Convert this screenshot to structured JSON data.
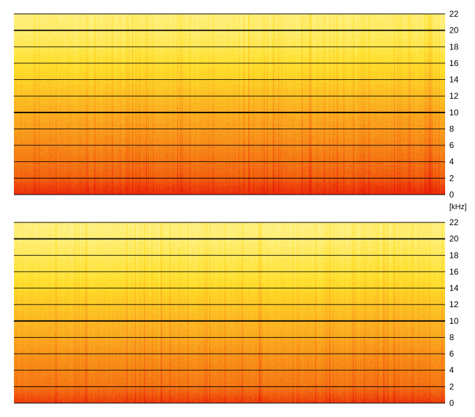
{
  "chart_data": [
    {
      "type": "heatmap",
      "title": "",
      "xlabel": "",
      "ylabel": "",
      "y_unit": "[kHz]",
      "ylim": [
        0,
        22
      ],
      "yticks": [
        "0",
        "2",
        "4",
        "6",
        "8",
        "10",
        "12",
        "14",
        "16",
        "18",
        "20",
        "22"
      ],
      "emphasized_gridlines": [
        "10",
        "20"
      ],
      "grid": true,
      "y_axis_side": "right",
      "colormap": [
        "#e81e08",
        "#f46a10",
        "#fbaa20",
        "#ffe02a",
        "#fff59a"
      ],
      "intensity_profile": {
        "freq_khz": [
          0,
          1,
          2,
          4,
          6,
          8,
          10,
          12,
          14,
          16,
          18,
          20,
          22
        ],
        "level": [
          0.05,
          0.12,
          0.22,
          0.3,
          0.38,
          0.45,
          0.52,
          0.6,
          0.68,
          0.76,
          0.84,
          0.9,
          0.93
        ]
      }
    },
    {
      "type": "heatmap",
      "title": "",
      "xlabel": "",
      "ylabel": "",
      "y_unit": "[kHz]",
      "ylim": [
        0,
        22
      ],
      "yticks": [
        "0",
        "2",
        "4",
        "6",
        "8",
        "10",
        "12",
        "14",
        "16",
        "18",
        "20",
        "22"
      ],
      "emphasized_gridlines": [
        "10",
        "20"
      ],
      "grid": true,
      "y_axis_side": "right",
      "colormap": [
        "#e81e08",
        "#f46a10",
        "#fbaa20",
        "#ffe02a",
        "#fff59a"
      ],
      "intensity_profile": {
        "freq_khz": [
          0,
          1,
          2,
          4,
          6,
          8,
          10,
          12,
          14,
          16,
          18,
          20,
          22
        ],
        "level": [
          0.1,
          0.2,
          0.3,
          0.36,
          0.42,
          0.5,
          0.56,
          0.64,
          0.72,
          0.8,
          0.86,
          0.92,
          0.94
        ]
      }
    }
  ]
}
